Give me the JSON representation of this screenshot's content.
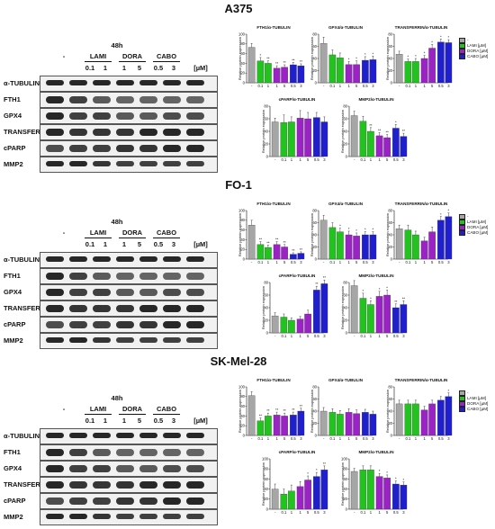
{
  "labels": {
    "duration": "48h",
    "unit": "[µM]",
    "drugs": [
      "-",
      "LAMI",
      "DORA",
      "CABO"
    ],
    "doses": [
      "0.1",
      "1",
      "1",
      "5",
      "0.5",
      "3"
    ],
    "proteins": [
      "α-TUBULIN",
      "FTH1",
      "GPX4",
      "TRANSFERRIN",
      "cPARP",
      "MMP2"
    ],
    "ylabel": "Relative protein expression",
    "legend": [
      "-",
      "LAMI [µM]",
      "DORA [µM]",
      "CABO [µM]"
    ]
  },
  "colors": {
    "ctrl": "#a6a6a6",
    "LAMI": "#22c21f",
    "DORA": "#9b23c6",
    "CABO": "#1f1fd0"
  },
  "panels": [
    {
      "cell_line": "A375",
      "charts": [
        {
          "title": "FTH1/α-TUBULIN",
          "yticks": [
            "0",
            "20",
            "40",
            "60",
            "80",
            "100"
          ],
          "xlabels": [
            "-",
            "0.1",
            "1",
            "1",
            "5",
            "0.5",
            "3"
          ],
          "values": [
            73,
            45,
            40,
            30,
            32,
            37,
            35
          ],
          "errors": [
            8,
            7,
            5,
            5,
            5,
            5,
            4
          ],
          "stars": [
            "",
            "*",
            "**",
            "**",
            "**",
            "**",
            "**"
          ],
          "ymax": 100
        },
        {
          "title": "GPX4/α-TUBULIN",
          "yticks": [
            "0",
            "20",
            "40",
            "60",
            "80"
          ],
          "xlabels": [
            "-",
            "0.1",
            "1",
            "1",
            "5",
            "0.5",
            "3"
          ],
          "values": [
            65,
            46,
            41,
            30,
            30,
            37,
            38
          ],
          "errors": [
            10,
            8,
            8,
            5,
            6,
            6,
            6
          ],
          "stars": [
            "",
            "",
            "",
            "*",
            "*",
            "*",
            "*"
          ],
          "ymax": 80
        },
        {
          "title": "TRANSFERRIN/α-TUBULIN",
          "yticks": [
            "0",
            "20",
            "40",
            "60",
            "80"
          ],
          "xlabels": [
            "-",
            "0.1",
            "1",
            "1",
            "5",
            "0.5",
            "3"
          ],
          "values": [
            47,
            35,
            35,
            40,
            57,
            67,
            66
          ],
          "errors": [
            5,
            4,
            5,
            5,
            6,
            5,
            5
          ],
          "stars": [
            "",
            "*",
            "*",
            "*",
            "*",
            "*",
            "*"
          ],
          "ymax": 80
        },
        {
          "title": "cPARP/α-TUBULIN",
          "yticks": [
            "0",
            "20",
            "40",
            "60",
            "80"
          ],
          "xlabels": [
            "-",
            "0.1",
            "1",
            "1",
            "5",
            "0.5",
            "3"
          ],
          "values": [
            55,
            54,
            55,
            61,
            60,
            62,
            55
          ],
          "errors": [
            6,
            12,
            8,
            12,
            10,
            8,
            8
          ],
          "stars": [
            "",
            "",
            "",
            "",
            "",
            "",
            ""
          ],
          "ymax": 80
        },
        {
          "title": "MMP2/α-TUBULIN",
          "yticks": [
            "0",
            "20",
            "40",
            "60",
            "80"
          ],
          "xlabels": [
            "-",
            "0.1",
            "1",
            "1",
            "5",
            "0.5",
            "3"
          ],
          "values": [
            65,
            56,
            40,
            33,
            30,
            45,
            32
          ],
          "errors": [
            7,
            8,
            6,
            5,
            5,
            6,
            5
          ],
          "stars": [
            "",
            "",
            "**",
            "**",
            "**",
            "*",
            "**"
          ],
          "ymax": 80
        }
      ]
    },
    {
      "cell_line": "FO-1",
      "charts": [
        {
          "title": "FTH1/α-TUBULIN",
          "yticks": [
            "0",
            "20",
            "40",
            "60",
            "80",
            "100"
          ],
          "xlabels": [
            "-",
            "0.1",
            "1",
            "1",
            "5",
            "0.5",
            "3"
          ],
          "values": [
            70,
            30,
            24,
            30,
            25,
            10,
            12
          ],
          "errors": [
            10,
            6,
            5,
            6,
            5,
            3,
            3
          ],
          "stars": [
            "",
            "**",
            "**",
            "**",
            "**",
            "**",
            "**"
          ],
          "ymax": 100
        },
        {
          "title": "GPX4/α-TUBULIN",
          "yticks": [
            "0",
            "20",
            "40",
            "60",
            "80"
          ],
          "xlabels": [
            "-",
            "0.1",
            "1",
            "1",
            "5",
            "0.5",
            "3"
          ],
          "values": [
            64,
            52,
            45,
            40,
            38,
            40,
            40
          ],
          "errors": [
            8,
            8,
            6,
            6,
            5,
            5,
            5
          ],
          "stars": [
            "",
            "",
            "*",
            "*",
            "*",
            "*",
            "*"
          ],
          "ymax": 80
        },
        {
          "title": "TRANSFERRIN/α-TUBULIN",
          "yticks": [
            "0",
            "20",
            "40",
            "60",
            "80"
          ],
          "xlabels": [
            "-",
            "0.1",
            "1",
            "1",
            "5",
            "0.5",
            "3"
          ],
          "values": [
            50,
            48,
            40,
            30,
            45,
            64,
            70
          ],
          "errors": [
            6,
            8,
            6,
            6,
            8,
            6,
            6
          ],
          "stars": [
            "",
            "",
            "",
            "",
            "",
            "*",
            "*"
          ],
          "ymax": 80
        },
        {
          "title": "cPARP/α-TUBULIN",
          "yticks": [
            "0",
            "20",
            "40",
            "60",
            "80"
          ],
          "xlabels": [
            "-",
            "0.1",
            "1",
            "1",
            "5",
            "0.5",
            "3"
          ],
          "values": [
            27,
            25,
            20,
            22,
            30,
            68,
            78
          ],
          "errors": [
            5,
            5,
            4,
            4,
            6,
            6,
            6
          ],
          "stars": [
            "",
            "",
            "",
            "",
            "",
            "**",
            "**"
          ],
          "ymax": 80
        },
        {
          "title": "MMP2/α-TUBULIN",
          "yticks": [
            "0",
            "20",
            "40",
            "60",
            "80"
          ],
          "xlabels": [
            "-",
            "0.1",
            "1",
            "1",
            "5",
            "0.5",
            "3"
          ],
          "values": [
            75,
            55,
            45,
            58,
            60,
            40,
            45
          ],
          "errors": [
            8,
            8,
            6,
            8,
            8,
            6,
            6
          ],
          "stars": [
            "",
            "*",
            "*",
            "*",
            "*",
            "**",
            "**"
          ],
          "ymax": 80
        }
      ]
    },
    {
      "cell_line": "SK-Mel-28",
      "charts": [
        {
          "title": "FTH1/α-TUBULIN",
          "yticks": [
            "0",
            "20",
            "40",
            "60",
            "80",
            "100"
          ],
          "xlabels": [
            "-",
            "0.1",
            "1",
            "1",
            "5",
            "0.5",
            "3"
          ],
          "values": [
            82,
            30,
            40,
            42,
            40,
            42,
            50
          ],
          "errors": [
            8,
            6,
            6,
            6,
            6,
            6,
            6
          ],
          "stars": [
            "",
            "**",
            "**",
            "**",
            "**",
            "**",
            "**"
          ],
          "ymax": 100
        },
        {
          "title": "GPX4/α-TUBULIN",
          "yticks": [
            "0",
            "20",
            "40",
            "60",
            "80"
          ],
          "xlabels": [
            "-",
            "0.1",
            "1",
            "1",
            "5",
            "0.5",
            "3"
          ],
          "values": [
            40,
            38,
            35,
            38,
            36,
            38,
            35
          ],
          "errors": [
            6,
            6,
            6,
            6,
            6,
            5,
            5
          ],
          "stars": [
            "",
            "",
            "",
            "",
            "",
            "",
            ""
          ],
          "ymax": 80
        },
        {
          "title": "TRANSFERRIN/α-TUBULIN",
          "yticks": [
            "0",
            "20",
            "40",
            "60",
            "80"
          ],
          "xlabels": [
            "-",
            "0.1",
            "1",
            "1",
            "5",
            "0.5",
            "3"
          ],
          "values": [
            52,
            52,
            52,
            42,
            52,
            58,
            64
          ],
          "errors": [
            6,
            6,
            6,
            6,
            6,
            6,
            6
          ],
          "stars": [
            "",
            "",
            "",
            "",
            "",
            "",
            "*"
          ],
          "ymax": 80
        },
        {
          "title": "cPARP/α-TUBULIN",
          "yticks": [
            "0",
            "20",
            "40",
            "60",
            "80",
            "100"
          ],
          "xlabels": [
            "-",
            "0.1",
            "1",
            "1",
            "5",
            "0.5",
            "3"
          ],
          "values": [
            40,
            30,
            36,
            45,
            58,
            65,
            78
          ],
          "errors": [
            10,
            10,
            12,
            10,
            8,
            8,
            8
          ],
          "stars": [
            "",
            "",
            "",
            "",
            "*",
            "*",
            "**"
          ],
          "ymax": 100
        },
        {
          "title": "MMP2/α-TUBULIN",
          "yticks": [
            "0",
            "20",
            "40",
            "60",
            "80",
            "100"
          ],
          "xlabels": [
            "-",
            "0.1",
            "1",
            "1",
            "5",
            "0.5",
            "3"
          ],
          "values": [
            75,
            78,
            78,
            65,
            62,
            50,
            48
          ],
          "errors": [
            6,
            8,
            8,
            6,
            6,
            6,
            6
          ],
          "stars": [
            "",
            "",
            "",
            "*",
            "*",
            "*",
            "*"
          ],
          "ymax": 100
        }
      ]
    }
  ]
}
